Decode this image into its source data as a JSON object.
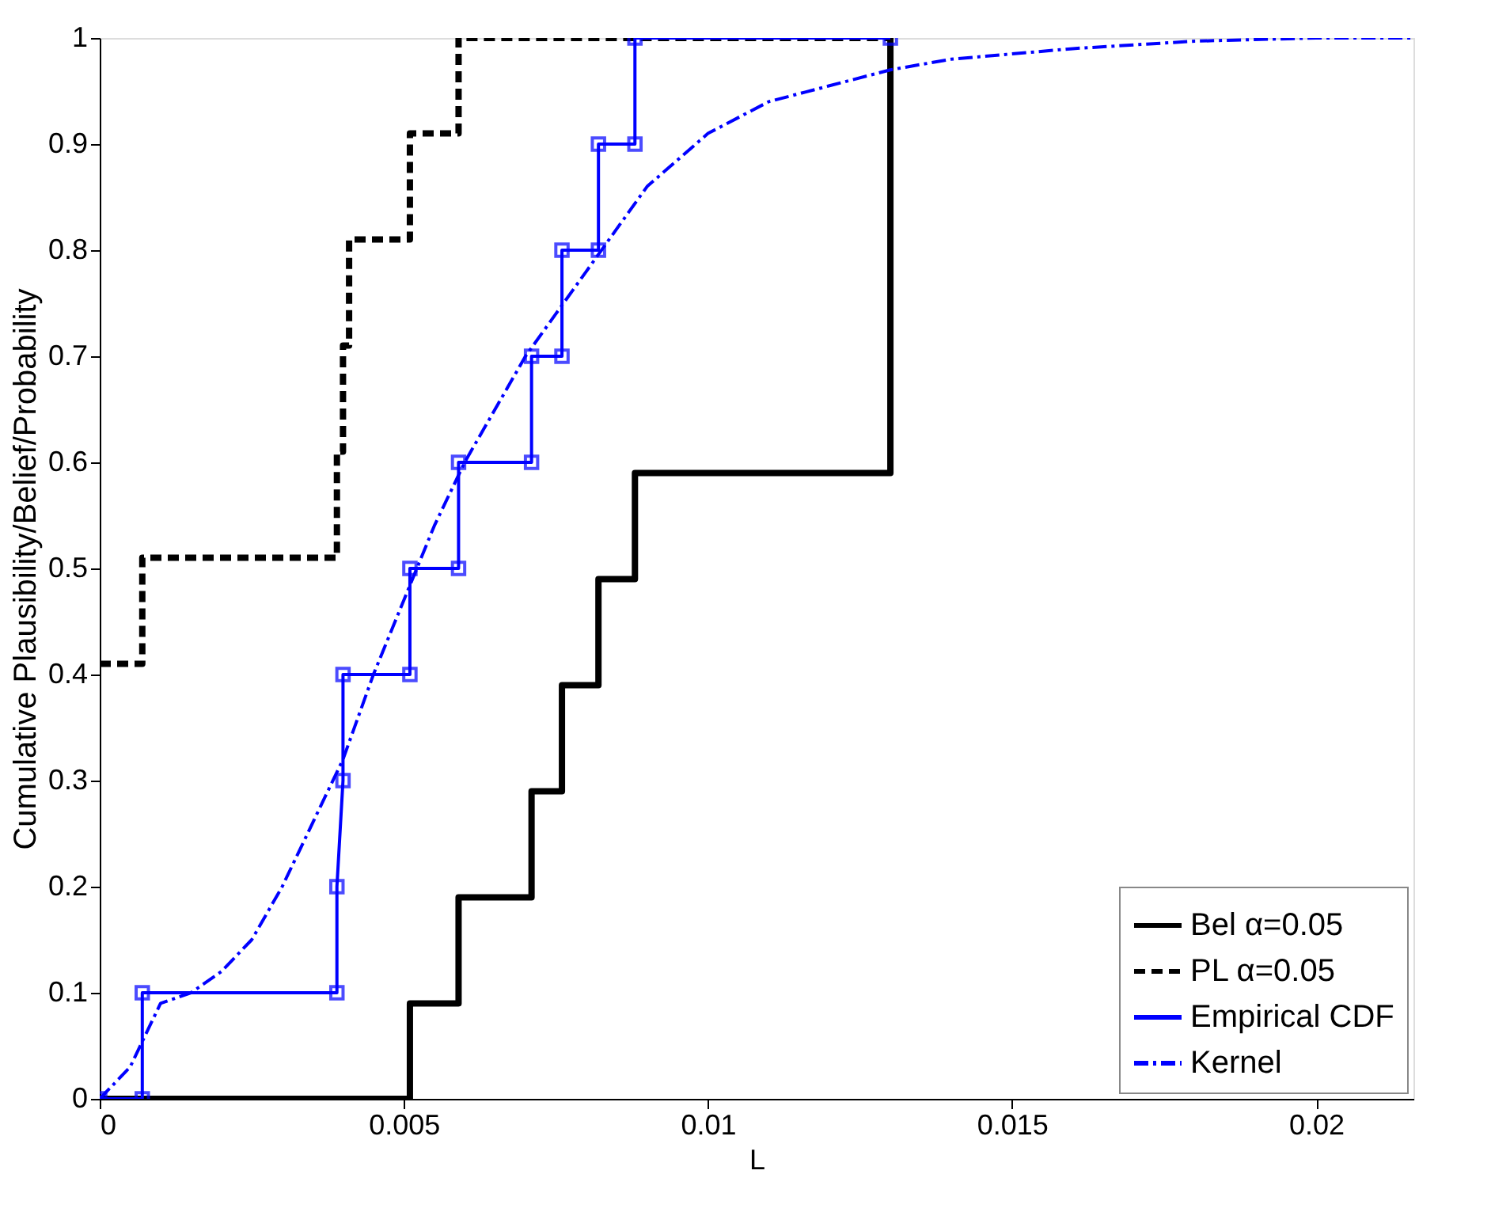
{
  "chart_data": {
    "type": "step",
    "xlabel": "L",
    "ylabel": "Cumulative Plausibility/Belief/Probability",
    "xlim": [
      0,
      0.0216
    ],
    "ylim": [
      0,
      1
    ],
    "xticks": [
      0,
      0.005,
      0.01,
      0.015,
      0.02
    ],
    "yticks": [
      0,
      0.1,
      0.2,
      0.3,
      0.4,
      0.5,
      0.6,
      0.7,
      0.8,
      0.9,
      1
    ],
    "grid": false,
    "legend": "bottom right",
    "series": [
      {
        "name": "Bel  α=0.05",
        "color": "#000000",
        "line_style": "solid",
        "marker": "none",
        "x": [
          0,
          0.0051,
          0.0059,
          0.0071,
          0.0076,
          0.0082,
          0.0088,
          0.013
        ],
        "values": [
          0,
          0.09,
          0.19,
          0.29,
          0.39,
          0.49,
          0.59,
          1
        ]
      },
      {
        "name": "PL  α=0.05",
        "color": "#000000",
        "line_style": "dashed",
        "marker": "none",
        "x": [
          0,
          0.0007,
          0.0039,
          0.004,
          0.0041,
          0.0051,
          0.0059,
          0.013
        ],
        "values": [
          0.41,
          0.51,
          0.61,
          0.71,
          0.81,
          0.91,
          1,
          1
        ]
      },
      {
        "name": "Empirical CDF",
        "type": "line",
        "color": "#0000ff",
        "line_style": "solid",
        "marker": "square",
        "x": [
          0,
          0.0007,
          0.0007,
          0.0039,
          0.0039,
          0.004,
          0.004,
          0.0051,
          0.0051,
          0.0059,
          0.0059,
          0.0071,
          0.0071,
          0.0076,
          0.0076,
          0.0082,
          0.0082,
          0.0088,
          0.0088,
          0.013
        ],
        "values": [
          0,
          0,
          0.1,
          0.1,
          0.2,
          0.3,
          0.4,
          0.4,
          0.5,
          0.5,
          0.6,
          0.6,
          0.7,
          0.7,
          0.8,
          0.8,
          0.9,
          0.9,
          1,
          1
        ]
      },
      {
        "name": "Kernel",
        "type": "line",
        "color": "#0000ff",
        "line_style": "dashdot",
        "marker": "none",
        "x": [
          0,
          0.0005,
          0.001,
          0.0015,
          0.002,
          0.0025,
          0.003,
          0.0035,
          0.004,
          0.0045,
          0.005,
          0.0055,
          0.006,
          0.0065,
          0.007,
          0.0075,
          0.008,
          0.0085,
          0.009,
          0.01,
          0.011,
          0.012,
          0.013,
          0.014,
          0.015,
          0.016,
          0.018,
          0.02,
          0.0216
        ],
        "values": [
          0,
          0.03,
          0.09,
          0.1,
          0.12,
          0.15,
          0.2,
          0.26,
          0.32,
          0.4,
          0.47,
          0.54,
          0.6,
          0.65,
          0.7,
          0.74,
          0.78,
          0.82,
          0.86,
          0.91,
          0.94,
          0.955,
          0.97,
          0.98,
          0.985,
          0.99,
          0.997,
          1,
          1
        ]
      }
    ]
  }
}
